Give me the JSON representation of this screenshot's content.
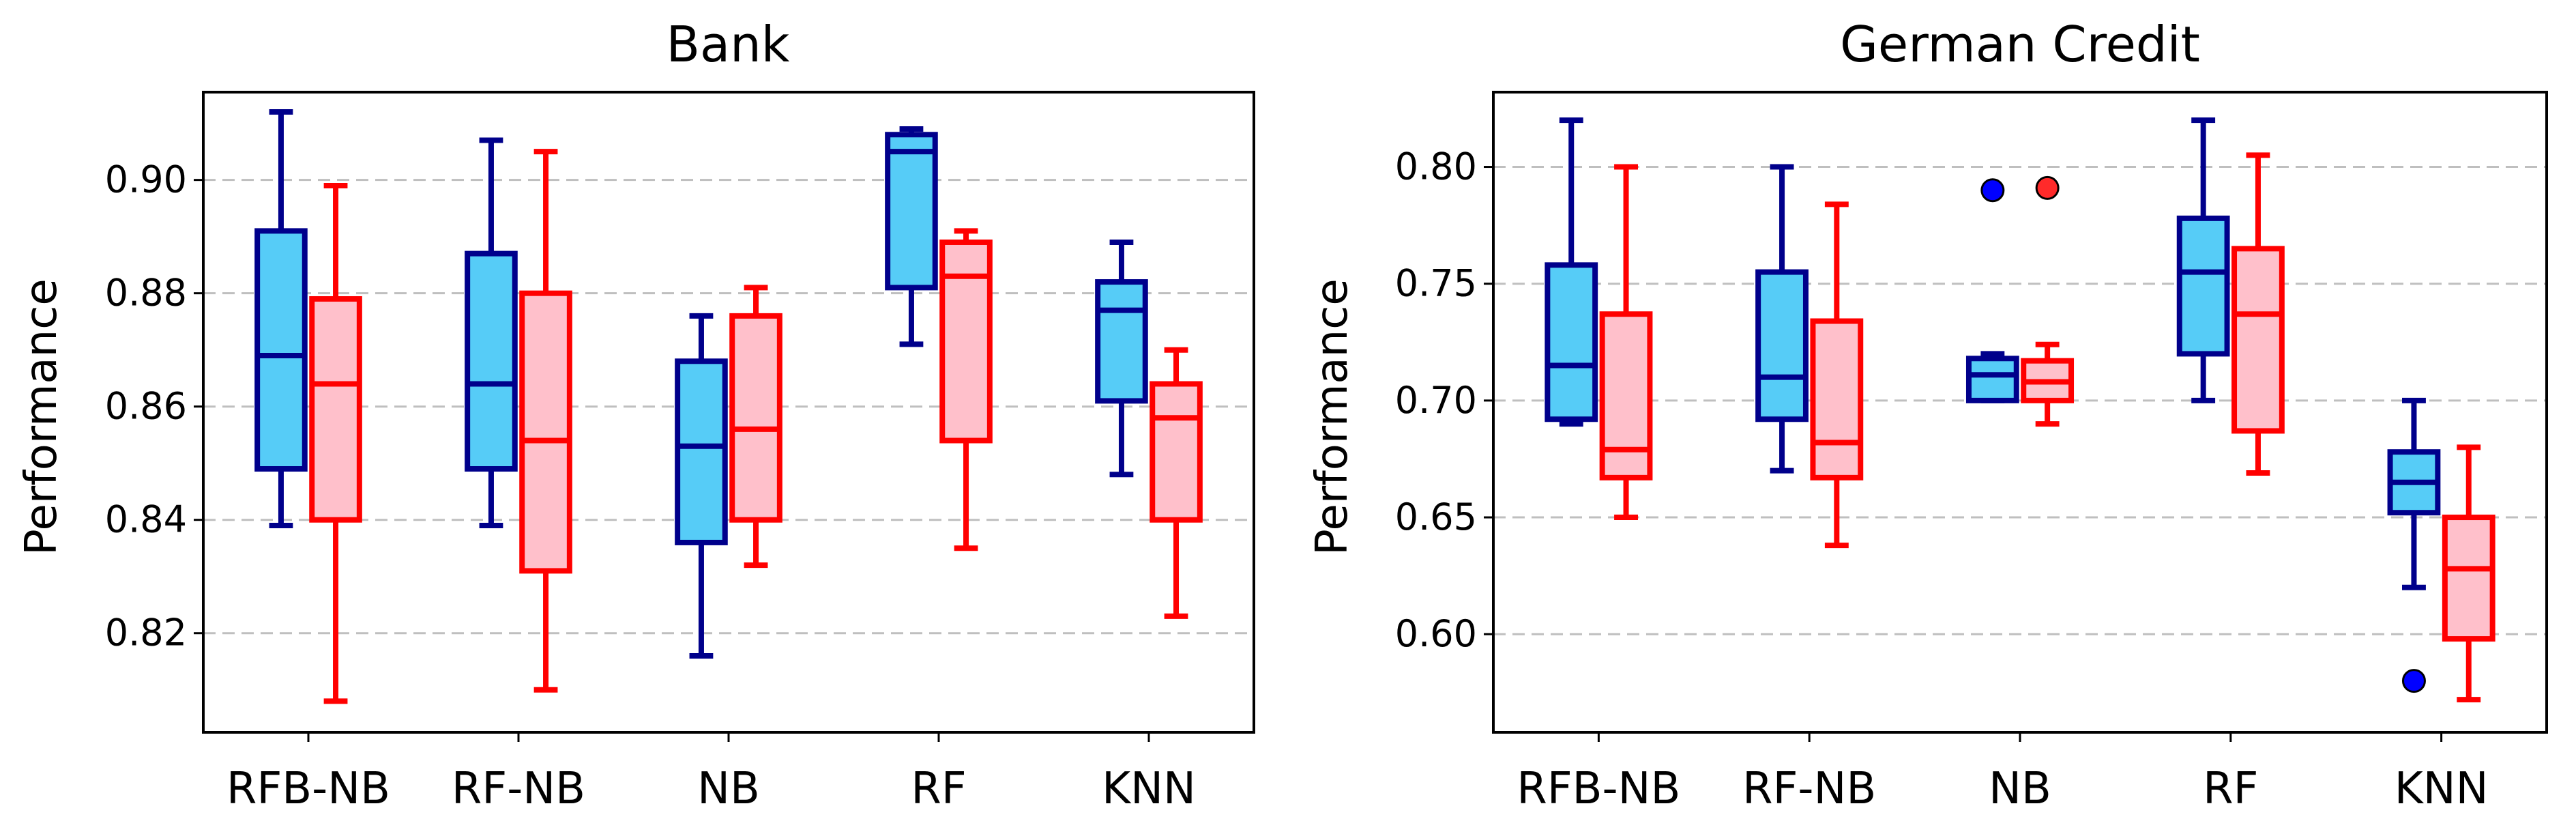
{
  "chart_data": [
    {
      "type": "box",
      "title": "Bank",
      "ylabel": "Performance",
      "xlabel": "",
      "ylim": [
        0.8025,
        0.9155
      ],
      "yticks": [
        "0.82",
        "0.84",
        "0.86",
        "0.88",
        "0.90"
      ],
      "ytick_values": [
        0.82,
        0.84,
        0.86,
        0.88,
        0.9
      ],
      "grid": "y-dashed",
      "categories": [
        "RFB-NB",
        "RF-NB",
        "NB",
        "RF",
        "KNN"
      ],
      "series": [
        {
          "name": "blue",
          "boxes": [
            {
              "category": "RFB-NB",
              "min": 0.839,
              "q1": 0.849,
              "median": 0.869,
              "q3": 0.891,
              "max": 0.912,
              "outliers": []
            },
            {
              "category": "RF-NB",
              "min": 0.839,
              "q1": 0.849,
              "median": 0.864,
              "q3": 0.887,
              "max": 0.907,
              "outliers": []
            },
            {
              "category": "NB",
              "min": 0.816,
              "q1": 0.836,
              "median": 0.853,
              "q3": 0.868,
              "max": 0.876,
              "outliers": []
            },
            {
              "category": "RF",
              "min": 0.871,
              "q1": 0.881,
              "median": 0.905,
              "q3": 0.908,
              "max": 0.909,
              "outliers": []
            },
            {
              "category": "KNN",
              "min": 0.848,
              "q1": 0.861,
              "median": 0.877,
              "q3": 0.882,
              "max": 0.889,
              "outliers": []
            }
          ]
        },
        {
          "name": "red",
          "boxes": [
            {
              "category": "RFB-NB",
              "min": 0.808,
              "q1": 0.84,
              "median": 0.864,
              "q3": 0.879,
              "max": 0.899,
              "outliers": []
            },
            {
              "category": "RF-NB",
              "min": 0.81,
              "q1": 0.831,
              "median": 0.854,
              "q3": 0.88,
              "max": 0.905,
              "outliers": []
            },
            {
              "category": "NB",
              "min": 0.832,
              "q1": 0.84,
              "median": 0.856,
              "q3": 0.876,
              "max": 0.881,
              "outliers": []
            },
            {
              "category": "RF",
              "min": 0.835,
              "q1": 0.854,
              "median": 0.883,
              "q3": 0.889,
              "max": 0.891,
              "outliers": []
            },
            {
              "category": "KNN",
              "min": 0.823,
              "q1": 0.84,
              "median": 0.858,
              "q3": 0.864,
              "max": 0.87,
              "outliers": []
            }
          ]
        }
      ]
    },
    {
      "type": "box",
      "title": "German Credit",
      "ylabel": "Performance",
      "xlabel": "",
      "ylim": [
        0.558,
        0.832
      ],
      "yticks": [
        "0.60",
        "0.65",
        "0.70",
        "0.75",
        "0.80"
      ],
      "ytick_values": [
        0.6,
        0.65,
        0.7,
        0.75,
        0.8
      ],
      "grid": "y-dashed",
      "categories": [
        "RFB-NB",
        "RF-NB",
        "NB",
        "RF",
        "KNN"
      ],
      "series": [
        {
          "name": "blue",
          "boxes": [
            {
              "category": "RFB-NB",
              "min": 0.69,
              "q1": 0.692,
              "median": 0.715,
              "q3": 0.758,
              "max": 0.82,
              "outliers": []
            },
            {
              "category": "RF-NB",
              "min": 0.67,
              "q1": 0.692,
              "median": 0.71,
              "q3": 0.755,
              "max": 0.8,
              "outliers": []
            },
            {
              "category": "NB",
              "min": 0.7,
              "q1": 0.7,
              "median": 0.711,
              "q3": 0.718,
              "max": 0.72,
              "outliers": [
                0.79
              ]
            },
            {
              "category": "RF",
              "min": 0.7,
              "q1": 0.72,
              "median": 0.755,
              "q3": 0.778,
              "max": 0.82,
              "outliers": []
            },
            {
              "category": "KNN",
              "min": 0.62,
              "q1": 0.652,
              "median": 0.665,
              "q3": 0.678,
              "max": 0.7,
              "outliers": [
                0.58
              ]
            }
          ]
        },
        {
          "name": "red",
          "boxes": [
            {
              "category": "RFB-NB",
              "min": 0.65,
              "q1": 0.667,
              "median": 0.679,
              "q3": 0.737,
              "max": 0.8,
              "outliers": []
            },
            {
              "category": "RF-NB",
              "min": 0.638,
              "q1": 0.667,
              "median": 0.682,
              "q3": 0.734,
              "max": 0.784,
              "outliers": []
            },
            {
              "category": "NB",
              "min": 0.69,
              "q1": 0.7,
              "median": 0.708,
              "q3": 0.717,
              "max": 0.724,
              "outliers": [
                0.791
              ]
            },
            {
              "category": "RF",
              "min": 0.669,
              "q1": 0.687,
              "median": 0.737,
              "q3": 0.765,
              "max": 0.805,
              "outliers": []
            },
            {
              "category": "KNN",
              "min": 0.572,
              "q1": 0.598,
              "median": 0.628,
              "q3": 0.65,
              "max": 0.68,
              "outliers": []
            }
          ]
        }
      ]
    }
  ],
  "colors": {
    "blue_line": "#00008b",
    "blue_fill": "#56ccf7",
    "blue_outlier": "#0000ff",
    "red_line": "#ff0000",
    "red_fill": "#ffc0cb",
    "red_outlier": "#ff2a2a",
    "grid": "#bfbfbf",
    "axis": "#000000"
  }
}
